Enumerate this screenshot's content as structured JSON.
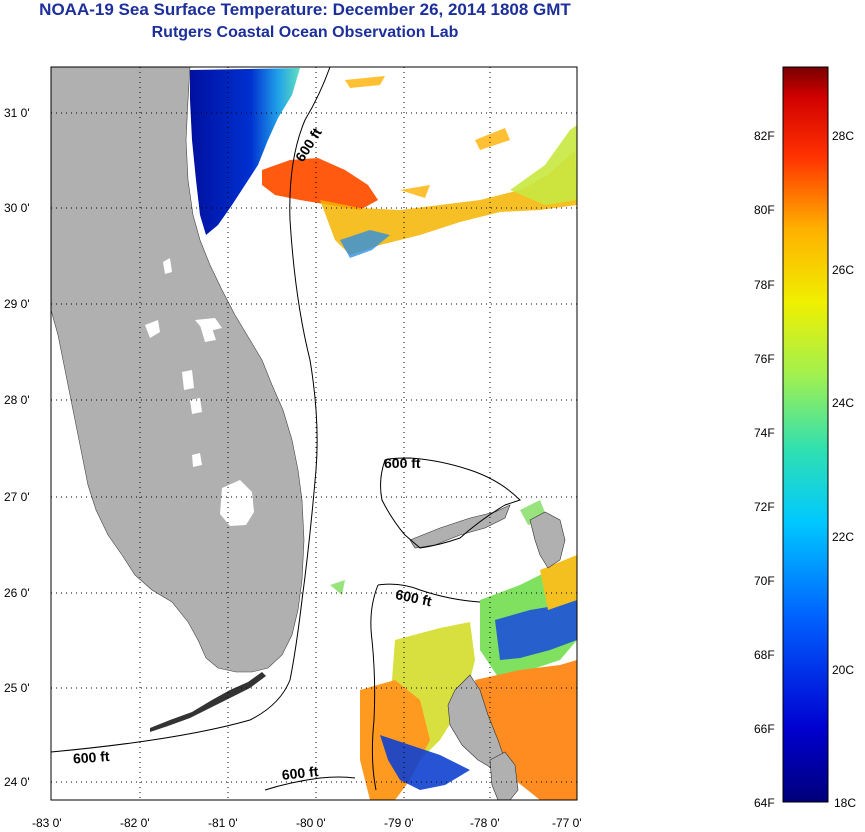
{
  "title": "NOAA-19 Sea Surface Temperature:  December 26, 2014 1808 GMT",
  "subtitle": "Rutgers Coastal Ocean Observation Lab",
  "map": {
    "lon_ticks": [
      "-83 0'",
      "-82 0'",
      "-81 0'",
      "-80 0'",
      "-79 0'",
      "-78 0'",
      "-77 0'"
    ],
    "lat_ticks": [
      "31 0'",
      "30 0'",
      "29 0'",
      "28 0'",
      "27 0'",
      "26 0'",
      "25 0'",
      "24 0'"
    ],
    "contour_labels": [
      "600 ft",
      "600 ft",
      "600 ft",
      "600 ft",
      "600 ft"
    ]
  },
  "colorbar": {
    "f_labels": [
      "82F",
      "80F",
      "78F",
      "76F",
      "74F",
      "72F",
      "70F",
      "68F",
      "66F",
      "64F"
    ],
    "c_labels": [
      "28C",
      "26C",
      "24C",
      "22C",
      "20C",
      "18C"
    ]
  },
  "colors": {
    "land": "#b0b0b0",
    "title": "#1c2f9a"
  }
}
